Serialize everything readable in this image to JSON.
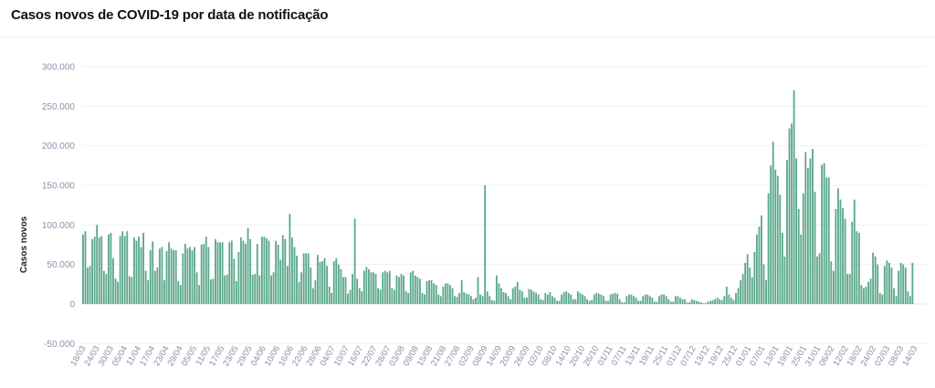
{
  "page": {
    "title": "Casos novos de COVID-19 por data de notificação"
  },
  "chart_data": {
    "type": "bar",
    "title": "Casos novos de COVID-19 por data de notificação",
    "ylabel": "Casos novos",
    "xlabel": "",
    "ylim": [
      -50000,
      300000
    ],
    "yticks": [
      -50000,
      0,
      50000,
      100000,
      150000,
      200000,
      250000,
      300000
    ],
    "ytick_labels": [
      "-50.000",
      "0",
      "50.000",
      "100.000",
      "150.000",
      "200.000",
      "250.000",
      "300.000"
    ],
    "xtick_labels": [
      "18/03",
      "24/03",
      "30/03",
      "05/04",
      "11/04",
      "17/04",
      "23/04",
      "29/04",
      "05/05",
      "11/05",
      "17/05",
      "23/05",
      "29/05",
      "04/06",
      "10/06",
      "16/06",
      "22/06",
      "28/06",
      "04/07",
      "10/07",
      "16/07",
      "22/07",
      "28/07",
      "03/08",
      "09/08",
      "15/08",
      "21/08",
      "27/08",
      "02/09",
      "08/09",
      "14/09",
      "20/09",
      "26/09",
      "02/10",
      "08/10",
      "14/10",
      "20/10",
      "26/10",
      "01/11",
      "07/11",
      "13/11",
      "19/11",
      "25/11",
      "01/12",
      "07/12",
      "13/12",
      "19/12",
      "25/12",
      "01/01",
      "07/01",
      "13/01",
      "19/01",
      "25/01",
      "31/01",
      "06/02",
      "12/02",
      "18/02",
      "24/02",
      "02/03",
      "08/03",
      "14/03"
    ],
    "grid": true,
    "bar_color": "#5ba88a",
    "values": [
      88000,
      92000,
      46000,
      48000,
      82000,
      85000,
      100000,
      84000,
      86000,
      42000,
      38000,
      88000,
      90000,
      58000,
      32000,
      28000,
      86000,
      92000,
      86000,
      92000,
      35000,
      34000,
      84000,
      80000,
      85000,
      72000,
      90000,
      42000,
      30000,
      68000,
      79000,
      42000,
      46000,
      70000,
      72000,
      30000,
      67000,
      78000,
      70000,
      68000,
      68000,
      29000,
      24000,
      64000,
      76000,
      70000,
      72000,
      68000,
      72000,
      40000,
      24000,
      75000,
      76000,
      85000,
      72000,
      31000,
      32000,
      82000,
      78000,
      78000,
      78000,
      36000,
      37000,
      78000,
      80000,
      57000,
      29000,
      66000,
      84000,
      80000,
      76000,
      96000,
      82000,
      37000,
      38000,
      76000,
      36000,
      85000,
      85000,
      83000,
      80000,
      36000,
      40000,
      80000,
      75000,
      56000,
      87000,
      82000,
      48000,
      114000,
      84000,
      72000,
      61000,
      28000,
      40000,
      64000,
      64000,
      64000,
      46000,
      20000,
      30000,
      62000,
      53000,
      54000,
      58000,
      48000,
      22000,
      14000,
      54000,
      58000,
      50000,
      44000,
      34000,
      34000,
      13000,
      18000,
      38000,
      108000,
      32000,
      20000,
      16000,
      42000,
      47000,
      44000,
      40000,
      40000,
      38000,
      20000,
      18000,
      40000,
      42000,
      40000,
      42000,
      20000,
      18000,
      36000,
      34000,
      38000,
      36000,
      16000,
      14000,
      40000,
      42000,
      36000,
      34000,
      32000,
      14000,
      12000,
      29000,
      30000,
      30000,
      26000,
      24000,
      12000,
      10000,
      22000,
      26000,
      26000,
      24000,
      20000,
      10000,
      9000,
      14000,
      30000,
      15000,
      13000,
      12000,
      10000,
      6000,
      8000,
      34000,
      12000,
      10000,
      150000,
      16000,
      10000,
      5000,
      4000,
      36000,
      26000,
      20000,
      15000,
      14000,
      10000,
      6000,
      20000,
      22000,
      28000,
      18000,
      16000,
      8000,
      8000,
      19000,
      18000,
      16000,
      14000,
      12000,
      6000,
      5000,
      14000,
      12000,
      15000,
      10000,
      8000,
      4000,
      4000,
      12000,
      15000,
      16000,
      14000,
      12000,
      6000,
      6000,
      16000,
      14000,
      12000,
      10000,
      6000,
      4000,
      5000,
      12000,
      14000,
      13000,
      12000,
      10000,
      4000,
      4000,
      12000,
      13000,
      14000,
      13000,
      6000,
      2000,
      2000,
      10000,
      12000,
      12000,
      10000,
      8000,
      4000,
      4000,
      10000,
      12000,
      12000,
      10000,
      8000,
      3000,
      3000,
      10000,
      12000,
      12000,
      10000,
      6000,
      3000,
      3000,
      10000,
      10000,
      8000,
      6000,
      6000,
      2000,
      2000,
      6000,
      5000,
      4000,
      3000,
      2000,
      1000,
      1000,
      3000,
      4000,
      5000,
      6000,
      8000,
      6000,
      5000,
      10000,
      22000,
      12000,
      8000,
      5000,
      14000,
      20000,
      30000,
      38000,
      52000,
      63000,
      46000,
      34000,
      66000,
      88000,
      98000,
      112000,
      50000,
      30000,
      140000,
      175000,
      205000,
      170000,
      162000,
      138000,
      90000,
      60000,
      182000,
      222000,
      228000,
      270000,
      184000,
      120000,
      88000,
      140000,
      192000,
      172000,
      184000,
      196000,
      142000,
      60000,
      64000,
      176000,
      178000,
      160000,
      160000,
      54000,
      42000,
      120000,
      146000,
      132000,
      121000,
      108000,
      38000,
      38000,
      104000,
      132000,
      92000,
      90000,
      24000,
      20000,
      22000,
      28000,
      32000,
      65000,
      60000,
      50000,
      14000,
      12000,
      48000,
      55000,
      52000,
      46000,
      20000,
      10000,
      42000,
      52000,
      50000,
      46000,
      16000,
      10000,
      52000
    ]
  }
}
